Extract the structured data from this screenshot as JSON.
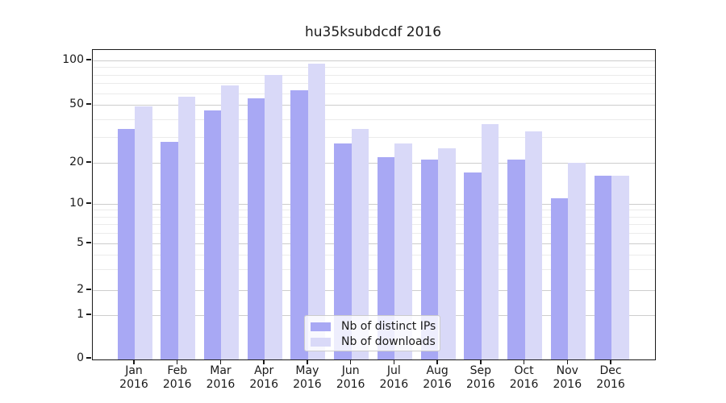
{
  "title": "hu35ksubdcdf 2016",
  "chart_data": {
    "type": "bar",
    "title": "hu35ksubdcdf 2016",
    "xlabel": "",
    "ylabel": "",
    "categories": [
      "Jan 2016",
      "Feb 2016",
      "Mar 2016",
      "Apr 2016",
      "May 2016",
      "Jun 2016",
      "Jul 2016",
      "Aug 2016",
      "Sep 2016",
      "Oct 2016",
      "Nov 2016",
      "Dec 2016"
    ],
    "series": [
      {
        "name": "Nb of distinct IPs",
        "color": "#a8a8f4",
        "values": [
          34,
          28,
          46,
          55,
          63,
          27,
          22,
          21,
          17,
          21,
          11,
          16
        ]
      },
      {
        "name": "Nb of downloads",
        "color": "#d9d9f8",
        "values": [
          49,
          57,
          68,
          80,
          95,
          34,
          27,
          25,
          37,
          33,
          20,
          16
        ]
      }
    ],
    "y_scale": "symlog",
    "y_ticks": [
      0,
      1,
      2,
      5,
      10,
      20,
      50,
      100
    ],
    "ylim": [
      0,
      115
    ],
    "grid": true,
    "minor_grid": true,
    "legend_position": "lower center"
  },
  "colors": {
    "major_grid": "#cdcdcd",
    "minor_grid": "#ebebeb",
    "spine": "#1a1a1a",
    "text": "#1a1a1a",
    "legend_border": "#cccccc"
  }
}
